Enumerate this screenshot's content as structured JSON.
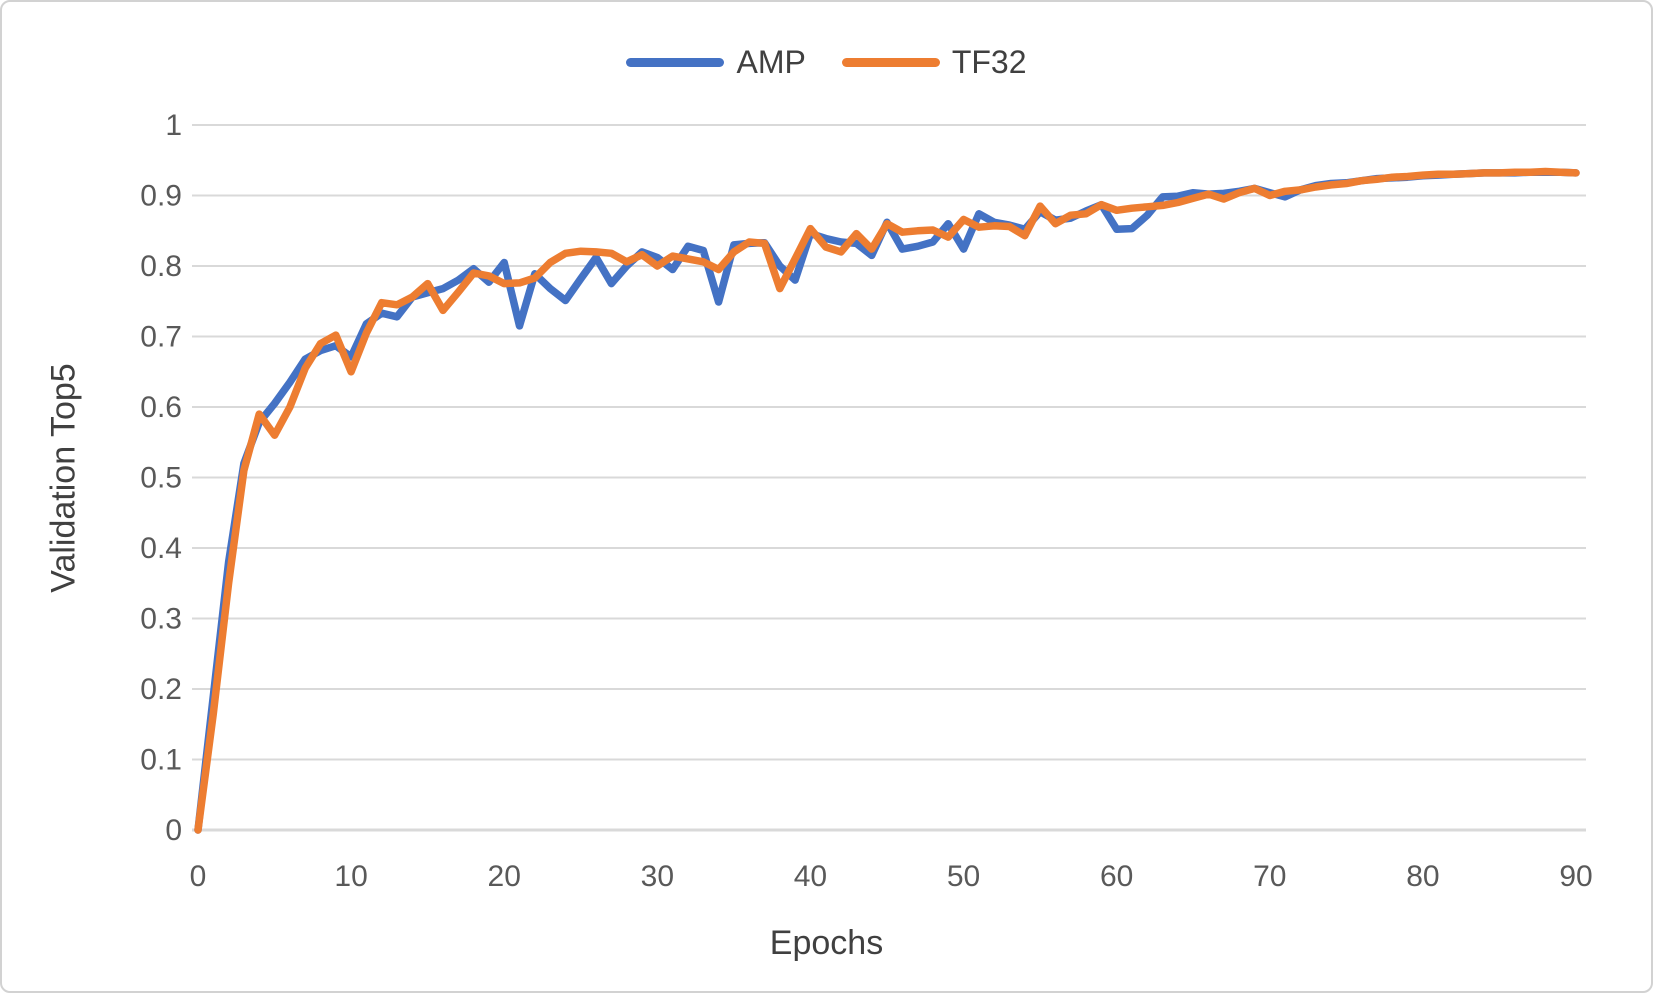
{
  "colors": {
    "amp_line": "#4472C4",
    "tf32_line": "#ED7D31",
    "gridline": "#D9D9D9",
    "axis_line": "#D9D9D9",
    "tick_text": "#595959",
    "title_text": "#404040",
    "frame_border": "#D2D2D2",
    "background": "#FFFFFF"
  },
  "chart_data": {
    "type": "line",
    "xlabel": "Epochs",
    "ylabel": "Validation Top5",
    "xlim": [
      0,
      90
    ],
    "ylim": [
      0,
      1
    ],
    "grid": "horizontal",
    "legend_position": "top-center",
    "xticks": [
      0,
      10,
      20,
      30,
      40,
      50,
      60,
      70,
      80,
      90
    ],
    "xtick_labels": [
      "0",
      "10",
      "20",
      "30",
      "40",
      "50",
      "60",
      "70",
      "80",
      "90"
    ],
    "yticks": [
      0,
      0.1,
      0.2,
      0.3,
      0.4,
      0.5,
      0.6,
      0.7,
      0.8,
      0.9,
      1
    ],
    "ytick_labels": [
      "0",
      "0.1",
      "0.2",
      "0.3",
      "0.4",
      "0.5",
      "0.6",
      "0.7",
      "0.8",
      "0.9",
      "1"
    ],
    "x": [
      0,
      1,
      2,
      3,
      4,
      5,
      6,
      7,
      8,
      9,
      10,
      11,
      12,
      13,
      14,
      15,
      16,
      17,
      18,
      19,
      20,
      21,
      22,
      23,
      24,
      25,
      26,
      27,
      28,
      29,
      30,
      31,
      32,
      33,
      34,
      35,
      36,
      37,
      38,
      39,
      40,
      41,
      42,
      43,
      44,
      45,
      46,
      47,
      48,
      49,
      50,
      51,
      52,
      53,
      54,
      55,
      56,
      57,
      58,
      59,
      60,
      61,
      62,
      63,
      64,
      65,
      66,
      67,
      68,
      69,
      70,
      71,
      72,
      73,
      74,
      75,
      76,
      77,
      78,
      79,
      80,
      81,
      82,
      83,
      84,
      85,
      86,
      87,
      88,
      89,
      90
    ],
    "series": [
      {
        "name": "AMP",
        "color": "#4472C4",
        "values": [
          0,
          0.19,
          0.38,
          0.52,
          0.578,
          0.605,
          0.635,
          0.668,
          0.68,
          0.687,
          0.671,
          0.718,
          0.733,
          0.728,
          0.756,
          0.762,
          0.768,
          0.78,
          0.796,
          0.777,
          0.805,
          0.715,
          0.789,
          0.768,
          0.751,
          0.782,
          0.812,
          0.775,
          0.8,
          0.82,
          0.812,
          0.795,
          0.828,
          0.822,
          0.749,
          0.83,
          0.832,
          0.833,
          0.8,
          0.78,
          0.846,
          0.839,
          0.834,
          0.832,
          0.815,
          0.862,
          0.824,
          0.828,
          0.834,
          0.86,
          0.824,
          0.874,
          0.862,
          0.858,
          0.852,
          0.877,
          0.865,
          0.868,
          0.878,
          0.887,
          0.852,
          0.853,
          0.872,
          0.898,
          0.899,
          0.904,
          0.902,
          0.903,
          0.906,
          0.91,
          0.904,
          0.898,
          0.908,
          0.914,
          0.917,
          0.918,
          0.921,
          0.924,
          0.925,
          0.926,
          0.928,
          0.929,
          0.93,
          0.931,
          0.932,
          0.932,
          0.932,
          0.933,
          0.933,
          0.933,
          0.932
        ]
      },
      {
        "name": "TF32",
        "color": "#ED7D31",
        "values": [
          0,
          0.165,
          0.35,
          0.51,
          0.59,
          0.56,
          0.6,
          0.655,
          0.69,
          0.702,
          0.65,
          0.705,
          0.748,
          0.745,
          0.756,
          0.775,
          0.737,
          0.763,
          0.79,
          0.786,
          0.775,
          0.776,
          0.783,
          0.805,
          0.818,
          0.821,
          0.82,
          0.818,
          0.806,
          0.816,
          0.8,
          0.814,
          0.81,
          0.806,
          0.795,
          0.82,
          0.834,
          0.832,
          0.768,
          0.81,
          0.853,
          0.827,
          0.82,
          0.846,
          0.824,
          0.86,
          0.848,
          0.85,
          0.851,
          0.841,
          0.866,
          0.855,
          0.857,
          0.856,
          0.843,
          0.885,
          0.86,
          0.872,
          0.874,
          0.887,
          0.879,
          0.882,
          0.884,
          0.886,
          0.89,
          0.896,
          0.902,
          0.895,
          0.904,
          0.91,
          0.9,
          0.906,
          0.908,
          0.912,
          0.915,
          0.917,
          0.921,
          0.923,
          0.926,
          0.927,
          0.929,
          0.93,
          0.93,
          0.931,
          0.932,
          0.932,
          0.933,
          0.933,
          0.934,
          0.933,
          0.932
        ]
      }
    ]
  }
}
